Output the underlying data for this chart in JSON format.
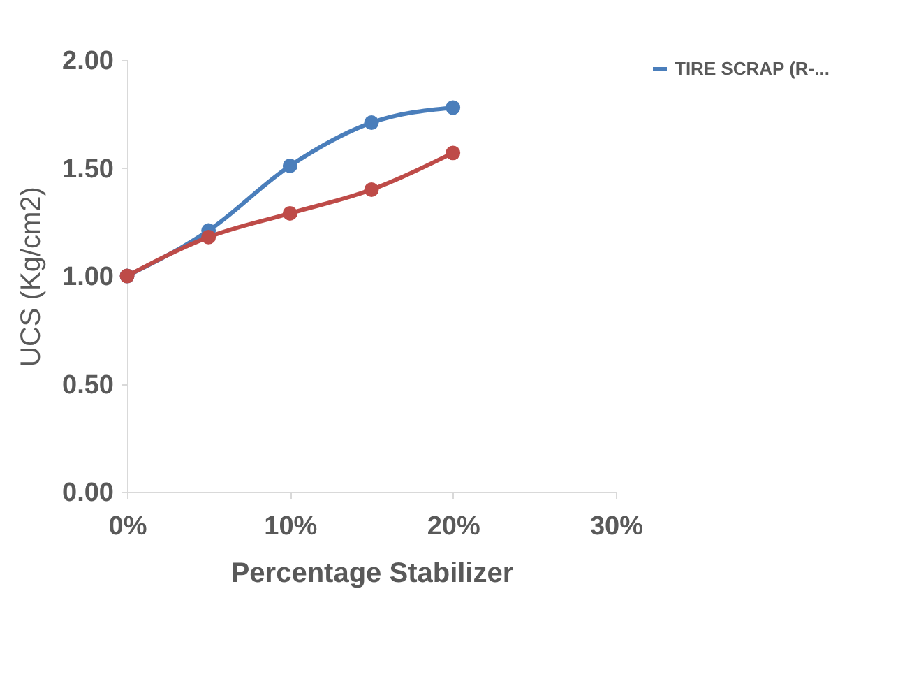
{
  "chart_data": {
    "type": "line",
    "xlabel": "Percentage Stabilizer",
    "ylabel": "UCS (Kg/cm2)",
    "x": [
      0,
      5,
      10,
      15,
      20
    ],
    "series": [
      {
        "name": "TIRE SCRAP (R-...",
        "color": "#4a7ebb",
        "values": [
          1.0,
          1.21,
          1.51,
          1.71,
          1.78
        ]
      },
      {
        "color": "#be4b48",
        "values": [
          1.0,
          1.18,
          1.29,
          1.4,
          1.57
        ]
      }
    ],
    "xlim": [
      0,
      30
    ],
    "xticks": [
      {
        "value": 0,
        "label": "0%"
      },
      {
        "value": 10,
        "label": "10%"
      },
      {
        "value": 20,
        "label": "20%"
      },
      {
        "value": 30,
        "label": "30%"
      }
    ],
    "ylim": [
      0,
      2
    ],
    "yticks": [
      {
        "value": 0,
        "label": "0.00"
      },
      {
        "value": 0.5,
        "label": "0.50"
      },
      {
        "value": 1,
        "label": "1.00"
      },
      {
        "value": 1.5,
        "label": "1.50"
      },
      {
        "value": 2,
        "label": "2.00"
      }
    ],
    "grid": false,
    "legend": "right",
    "marker": "circle",
    "line_style": "solid"
  }
}
